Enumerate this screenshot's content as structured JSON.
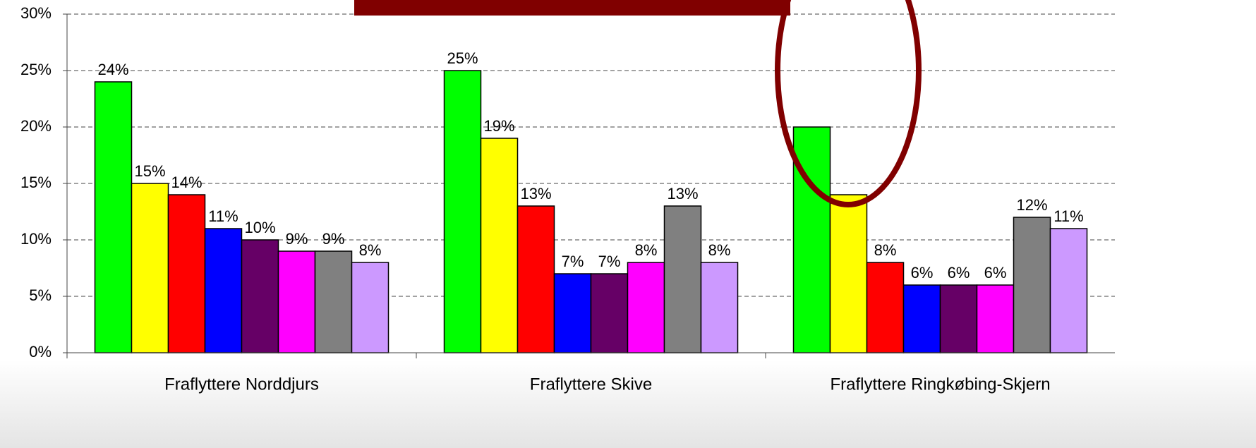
{
  "chart_data": {
    "type": "bar",
    "categories": [
      "Fraflyttere Norddjurs",
      "Fraflyttere Skive",
      "Fraflyttere Ringkøbing-Skjern"
    ],
    "series": [
      {
        "color": "#00ff00",
        "values": [
          24,
          25,
          20
        ],
        "value_labels": [
          "24%",
          "25%",
          null
        ]
      },
      {
        "color": "#ffff00",
        "values": [
          15,
          19,
          14
        ],
        "value_labels": [
          "15%",
          "19%",
          null
        ]
      },
      {
        "color": "#ff0000",
        "values": [
          14,
          13,
          8
        ],
        "value_labels": [
          "14%",
          "13%",
          "8%"
        ]
      },
      {
        "color": "#0000ff",
        "values": [
          11,
          7,
          6
        ],
        "value_labels": [
          "11%",
          "7%",
          "6%"
        ]
      },
      {
        "color": "#660066",
        "values": [
          10,
          7,
          6
        ],
        "value_labels": [
          "10%",
          "7%",
          "6%"
        ]
      },
      {
        "color": "#ff00ff",
        "values": [
          9,
          8,
          6
        ],
        "value_labels": [
          "9%",
          "8%",
          "6%"
        ]
      },
      {
        "color": "#808080",
        "values": [
          9,
          13,
          12
        ],
        "value_labels": [
          "9%",
          "13%",
          "12%"
        ]
      },
      {
        "color": "#cc99ff",
        "values": [
          8,
          8,
          11
        ],
        "value_labels": [
          "8%",
          "8%",
          "11%"
        ]
      }
    ],
    "ylim": [
      0,
      30
    ],
    "yticks": [
      {
        "value": 0,
        "label": "0%"
      },
      {
        "value": 5,
        "label": "5%"
      },
      {
        "value": 10,
        "label": "10%"
      },
      {
        "value": 15,
        "label": "15%"
      },
      {
        "value": 20,
        "label": "20%"
      },
      {
        "value": 25,
        "label": "25%"
      },
      {
        "value": 30,
        "label": "30%"
      }
    ],
    "grid": true
  }
}
